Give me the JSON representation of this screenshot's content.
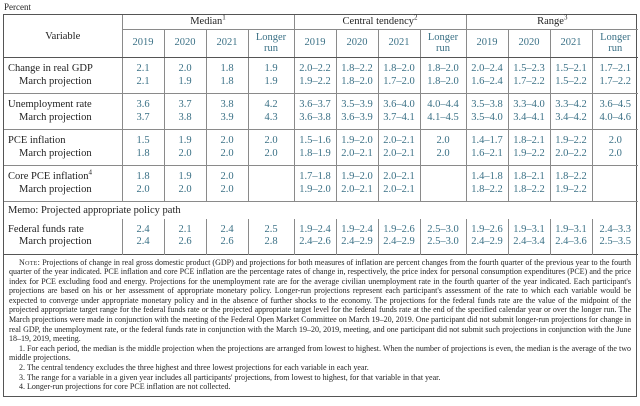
{
  "page": {
    "units_label": "Percent"
  },
  "colors": {
    "number": "#3b7186",
    "text": "#1f1f1f",
    "border": "#555555",
    "grid": "#8a8a8a"
  },
  "table": {
    "header": {
      "variable": "Variable",
      "groups": [
        {
          "label": "Median",
          "sup": "1"
        },
        {
          "label": "Central tendency",
          "sup": "2"
        },
        {
          "label": "Range",
          "sup": "3"
        }
      ],
      "years": [
        "2019",
        "2020",
        "2021",
        "Longer run"
      ]
    },
    "rows": [
      {
        "kind": "main",
        "label": "Change in real GDP",
        "median": [
          "2.1",
          "2.0",
          "1.8",
          "1.9"
        ],
        "central": [
          "2.0–2.2",
          "1.8–2.2",
          "1.8–2.0",
          "1.8–2.0"
        ],
        "range": [
          "2.0–2.4",
          "1.5–2.3",
          "1.5–2.1",
          "1.7–2.1"
        ]
      },
      {
        "kind": "march",
        "label": "March projection",
        "median": [
          "2.1",
          "1.9",
          "1.8",
          "1.9"
        ],
        "central": [
          "1.9–2.2",
          "1.8–2.0",
          "1.7–2.0",
          "1.8–2.0"
        ],
        "range": [
          "1.6–2.4",
          "1.7–2.2",
          "1.5–2.2",
          "1.7–2.2"
        ]
      },
      {
        "kind": "main",
        "label": "Unemployment rate",
        "median": [
          "3.6",
          "3.7",
          "3.8",
          "4.2"
        ],
        "central": [
          "3.6–3.7",
          "3.5–3.9",
          "3.6–4.0",
          "4.0–4.4"
        ],
        "range": [
          "3.5–3.8",
          "3.3–4.0",
          "3.3–4.2",
          "3.6–4.5"
        ]
      },
      {
        "kind": "march",
        "label": "March projection",
        "median": [
          "3.7",
          "3.8",
          "3.9",
          "4.3"
        ],
        "central": [
          "3.6–3.8",
          "3.6–3.9",
          "3.7–4.1",
          "4.1–4.5"
        ],
        "range": [
          "3.5–4.0",
          "3.4–4.1",
          "3.4–4.2",
          "4.0–4.6"
        ]
      },
      {
        "kind": "main",
        "label": "PCE inflation",
        "median": [
          "1.5",
          "1.9",
          "2.0",
          "2.0"
        ],
        "central": [
          "1.5–1.6",
          "1.9–2.0",
          "2.0–2.1",
          "2.0"
        ],
        "range": [
          "1.4–1.7",
          "1.8–2.1",
          "1.9–2.2",
          "2.0"
        ]
      },
      {
        "kind": "march",
        "label": "March projection",
        "median": [
          "1.8",
          "2.0",
          "2.0",
          "2.0"
        ],
        "central": [
          "1.8–1.9",
          "2.0–2.1",
          "2.0–2.1",
          "2.0"
        ],
        "range": [
          "1.6–2.1",
          "1.9–2.2",
          "2.0–2.2",
          "2.0"
        ]
      },
      {
        "kind": "main",
        "label": "Core PCE inflation",
        "sup": "4",
        "median": [
          "1.8",
          "1.9",
          "2.0",
          ""
        ],
        "central": [
          "1.7–1.8",
          "1.9–2.0",
          "2.0–2.1",
          ""
        ],
        "range": [
          "1.4–1.8",
          "1.8–2.1",
          "1.8–2.2",
          ""
        ]
      },
      {
        "kind": "march",
        "label": "March projection",
        "median": [
          "2.0",
          "2.0",
          "2.0",
          ""
        ],
        "central": [
          "1.9–2.0",
          "2.0–2.1",
          "2.0–2.1",
          ""
        ],
        "range": [
          "1.8–2.2",
          "1.8–2.2",
          "1.9–2.2",
          ""
        ]
      },
      {
        "kind": "memo",
        "label": "Memo: Projected appropriate policy path"
      },
      {
        "kind": "main",
        "no_line": true,
        "label": "Federal funds rate",
        "median": [
          "2.4",
          "2.1",
          "2.4",
          "2.5"
        ],
        "central": [
          "1.9–2.4",
          "1.9–2.4",
          "1.9–2.6",
          "2.5–3.0"
        ],
        "range": [
          "1.9–2.6",
          "1.9–3.1",
          "1.9–3.1",
          "2.4–3.3"
        ]
      },
      {
        "kind": "march",
        "label": "March projection",
        "median": [
          "2.4",
          "2.6",
          "2.6",
          "2.8"
        ],
        "central": [
          "2.4–2.6",
          "2.4–2.9",
          "2.4–2.9",
          "2.5–3.0"
        ],
        "range": [
          "2.4–2.9",
          "2.4–3.4",
          "2.4–3.6",
          "2.5–3.5"
        ]
      }
    ]
  },
  "notes": {
    "label": "Note:",
    "text": "Projections of change in real gross domestic product (GDP) and projections for both measures of inflation are percent changes from the fourth quarter of the previous year to the fourth quarter of the year indicated. PCE inflation and core PCE inflation are the percentage rates of change in, respectively, the price index for personal consumption expenditures (PCE) and the price index for PCE excluding food and energy. Projections for the unemployment rate are for the average civilian unemployment rate in the fourth quarter of the year indicated. Each participant's projections are based on his or her assessment of appropriate monetary policy. Longer-run projections represent each participant's assessment of the rate to which each variable would be expected to converge under appropriate monetary policy and in the absence of further shocks to the economy. The projections for the federal funds rate are the value of the midpoint of the projected appropriate target range for the federal funds rate or the projected appropriate target level for the federal funds rate at the end of the specified calendar year or over the longer run. The March projections were made in conjunction with the meeting of the Federal Open Market Committee on March 19–20, 2019. One participant did not submit longer-run projections for change in real GDP, the unemployment rate, or the federal funds rate in conjunction with the March 19–20, 2019, meeting, and one participant did not submit such projections in conjunction with the June 18–19, 2019, meeting.",
    "footnotes": [
      "1. For each period, the median is the middle projection when the projections are arranged from lowest to highest. When the number of projections is even, the median is the average of the two middle projections.",
      "2. The central tendency excludes the three highest and three lowest projections for each variable in each year.",
      "3. The range for a variable in a given year includes all participants' projections, from lowest to highest, for that variable in that year.",
      "4. Longer-run projections for core PCE inflation are not collected."
    ]
  }
}
